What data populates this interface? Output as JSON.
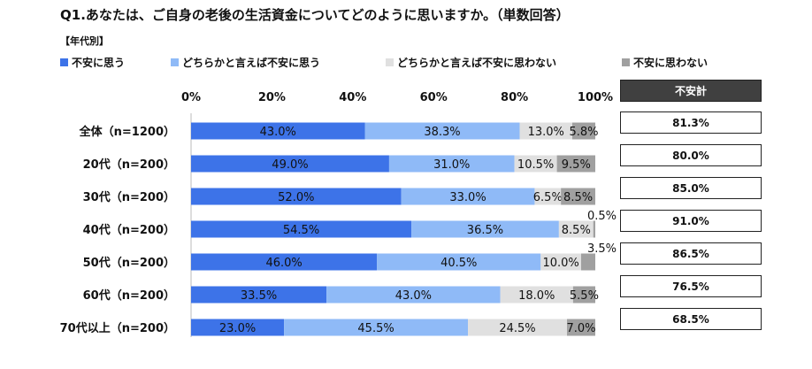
{
  "title": "Q1.あなたは、ご自身の老後の生活資金についてどのように思いますか。（単数回答）",
  "subtitle": "【年代別】",
  "chart_data": {
    "type": "bar",
    "orientation": "horizontal",
    "stacked": "percent",
    "xlim": [
      0,
      100
    ],
    "x_ticks": [
      "0%",
      "20%",
      "40%",
      "60%",
      "80%",
      "100%"
    ],
    "legend_position": "top",
    "categories": [
      "全体（n=1200）",
      "20代（n=200）",
      "30代（n=200）",
      "40代（n=200）",
      "50代（n=200）",
      "60代（n=200）",
      "70代以上（n=200）"
    ],
    "series": [
      {
        "name": "不安に思う",
        "color": "#3d73e8",
        "values": [
          43.0,
          49.0,
          52.0,
          54.5,
          46.0,
          33.5,
          23.0
        ]
      },
      {
        "name": "どちらかと言えば不安に思う",
        "color": "#8fbaf7",
        "values": [
          38.3,
          31.0,
          33.0,
          36.5,
          40.5,
          43.0,
          45.5
        ]
      },
      {
        "name": "どちらかと言えば不安に思わない",
        "color": "#e0e0e0",
        "values": [
          13.0,
          10.5,
          6.5,
          8.5,
          10.0,
          18.0,
          24.5
        ]
      },
      {
        "name": "不安に思わない",
        "color": "#a0a0a0",
        "values": [
          5.8,
          9.5,
          8.5,
          0.5,
          3.5,
          5.5,
          7.0
        ]
      }
    ],
    "total_header": "不安計",
    "totals": [
      "81.3%",
      "80.0%",
      "85.0%",
      "91.0%",
      "86.5%",
      "76.5%",
      "68.5%"
    ]
  }
}
